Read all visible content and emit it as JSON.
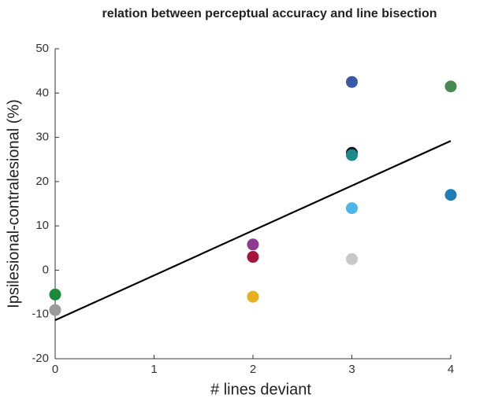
{
  "chart_data": {
    "type": "scatter",
    "title": "relation between perceptual accuracy and line bisection",
    "x_label": "# lines deviant",
    "y_label": "Ipsilesional-contralesional (%)",
    "x": [
      0,
      0,
      2,
      2,
      2,
      3,
      3,
      3,
      3,
      3,
      4,
      4
    ],
    "values": [
      -5.5,
      -9,
      5.8,
      3,
      -6,
      42.5,
      26.5,
      26,
      14,
      2.5,
      41.5,
      17
    ],
    "colors": [
      "#1a8a3a",
      "#9a9a9a",
      "#8e3a8e",
      "#a3173e",
      "#e6b020",
      "#3a56a8",
      "#111111",
      "#1a8a8a",
      "#4ab5e6",
      "#c8c8c8",
      "#4a8a50",
      "#1f7fb5"
    ],
    "fit_line": {
      "x": [
        0,
        4
      ],
      "values": [
        -11.3,
        29.2
      ],
      "color": "#000000"
    },
    "xlim": [
      0,
      4
    ],
    "ylim": [
      -20,
      50
    ],
    "xticks": [
      0,
      1,
      2,
      3,
      4
    ],
    "yticks": [
      -20,
      -10,
      0,
      10,
      20,
      30,
      40,
      50
    ]
  }
}
